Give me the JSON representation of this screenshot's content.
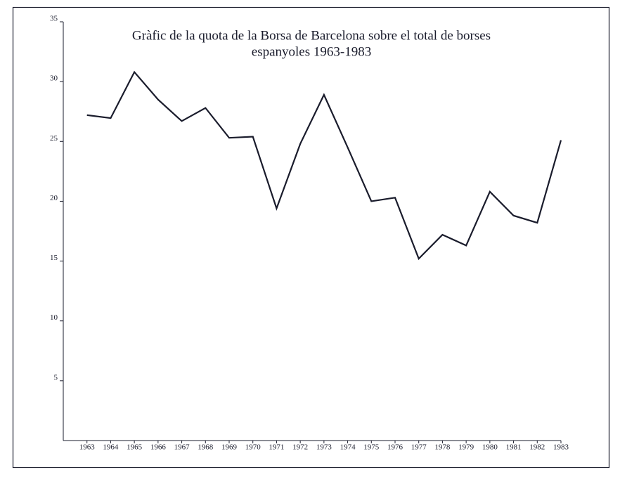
{
  "chart_data": {
    "type": "line",
    "title": [
      "Gràfic de la quota de la Borsa de Barcelona sobre el total de borses",
      "espanyoles 1963-1983"
    ],
    "x": [
      1963,
      1964,
      1965,
      1966,
      1967,
      1968,
      1969,
      1970,
      1971,
      1972,
      1973,
      1974,
      1975,
      1976,
      1977,
      1978,
      1979,
      1980,
      1981,
      1982,
      1983
    ],
    "series": [
      {
        "color": "#1a1c2c",
        "values": [
          27.2,
          26.95,
          30.8,
          28.5,
          26.7,
          27.8,
          25.3,
          25.4,
          19.4,
          24.8,
          28.9,
          24.5,
          20.0,
          20.3,
          15.2,
          17.2,
          16.3,
          20.8,
          18.8,
          18.2,
          25.1
        ]
      }
    ],
    "xlim": [
      1962,
      1983
    ],
    "xticks": [
      1963,
      1964,
      1965,
      1966,
      1967,
      1968,
      1969,
      1970,
      1971,
      1972,
      1973,
      1974,
      1975,
      1976,
      1977,
      1978,
      1979,
      1980,
      1981,
      1982,
      1983
    ],
    "ylim": [
      0,
      35
    ],
    "yticks": [
      5,
      10,
      15,
      20,
      25,
      30,
      35
    ],
    "grid": false
  }
}
